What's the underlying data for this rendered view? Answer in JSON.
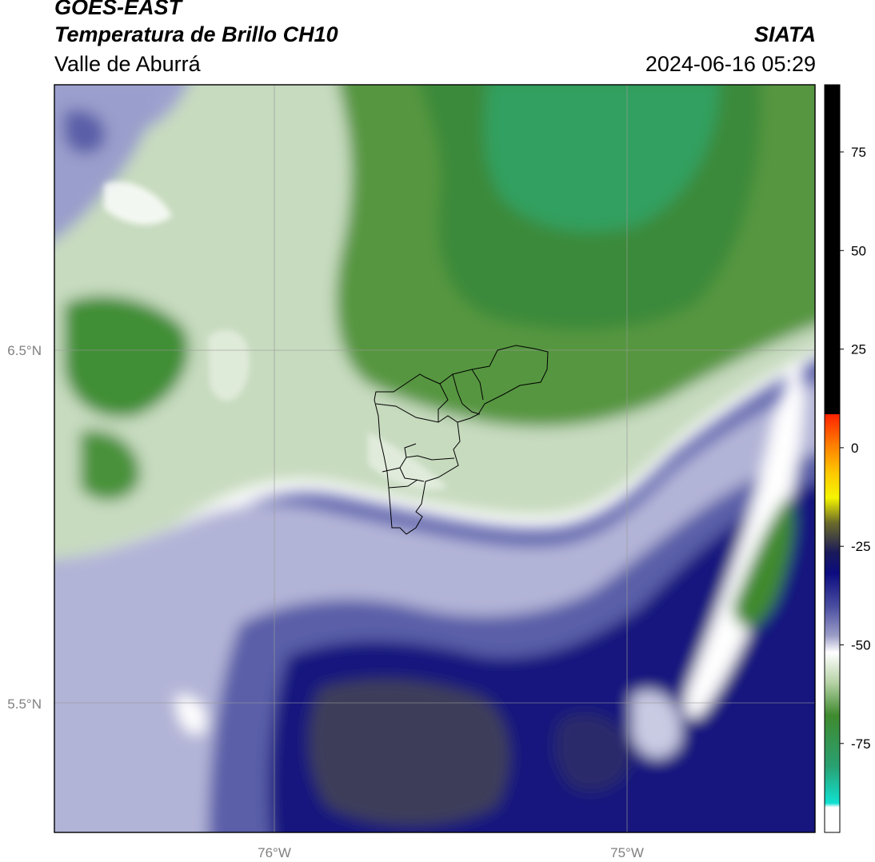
{
  "header": {
    "satellite": "GOES-EAST",
    "product": "Temperatura de Brillo CH10",
    "region": "Valle de Aburrá",
    "organization": "SIATA",
    "timestamp": "2024-06-16 05:29"
  },
  "map": {
    "lat_labels": [
      "6.5°N",
      "5.5°N"
    ],
    "lon_labels": [
      "76°W",
      "75°W"
    ],
    "colors": {
      "dark_green": "#3f8a2e",
      "teal_green": "#34a060",
      "pale_green": "#c9dcc0",
      "white": "#ffffff",
      "lavender": "#b4b6d8",
      "mid_blue": "#5a5fa8",
      "navy": "#14147c",
      "dark_slate": "#3e3e58"
    }
  },
  "colorbar": {
    "ticks": [
      "75",
      "50",
      "25",
      "0",
      "-25",
      "-50",
      "-75"
    ]
  }
}
